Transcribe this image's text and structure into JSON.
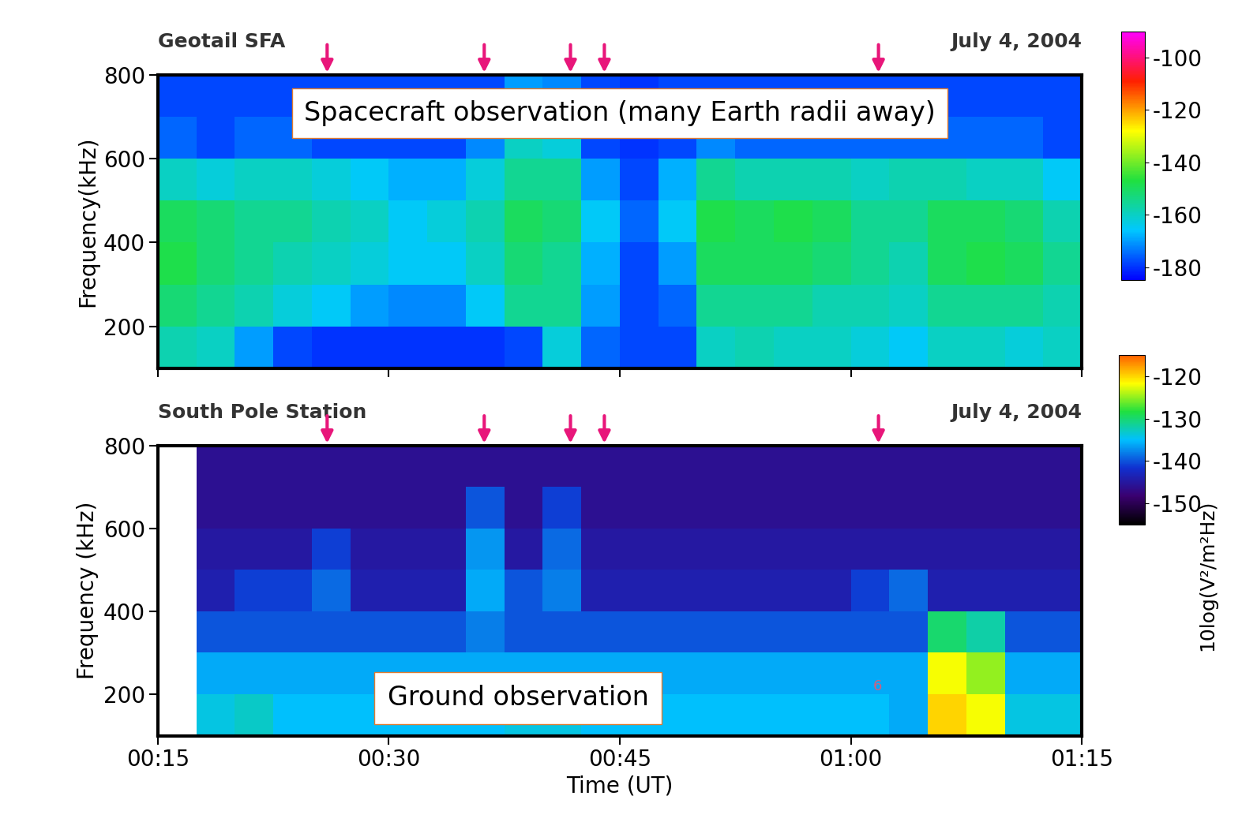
{
  "chart_data": [
    {
      "type": "heatmap",
      "title": "Geotail SFA",
      "subtitle": "July 4, 2004",
      "y_label": "Frequency(kHz)",
      "annotations": [
        "Spacecraft observation (many Earth radii away)"
      ],
      "tick_labels": "y",
      "xlim": [
        15,
        75
      ],
      "xticks": [
        {
          "value": 15,
          "label": "00:15"
        },
        {
          "value": 30,
          "label": "00:30"
        },
        {
          "value": 45,
          "label": "00:45"
        },
        {
          "value": 60,
          "label": "01:00"
        },
        {
          "value": 75,
          "label": "01:15"
        }
      ],
      "ylim": [
        100,
        800
      ],
      "yticks": [
        200,
        400,
        600,
        800
      ],
      "arrows": [
        26,
        36.2,
        41.8,
        44,
        61.8
      ],
      "x_edges": [
        15,
        17.5,
        20,
        22.5,
        25,
        27.5,
        30,
        32.5,
        35,
        37.5,
        40,
        42.5,
        45,
        47.5,
        50,
        52.5,
        55,
        57.5,
        60,
        62.5,
        65,
        67.5,
        70,
        72.5,
        75
      ],
      "y_edges": [
        100,
        200,
        300,
        400,
        500,
        600,
        700,
        800
      ],
      "cells": [
        [
          -158,
          -160,
          -170,
          -178,
          -180,
          -180,
          -180,
          -180,
          -180,
          -178,
          -162,
          -175,
          -178,
          -178,
          -160,
          -158,
          -160,
          -160,
          -162,
          -165,
          -160,
          -160,
          -162,
          -160
        ],
        [
          -152,
          -155,
          -158,
          -162,
          -165,
          -170,
          -172,
          -172,
          -165,
          -155,
          -155,
          -170,
          -178,
          -175,
          -155,
          -155,
          -155,
          -158,
          -158,
          -160,
          -155,
          -155,
          -155,
          -158
        ],
        [
          -148,
          -152,
          -155,
          -158,
          -160,
          -162,
          -165,
          -165,
          -160,
          -152,
          -155,
          -168,
          -178,
          -170,
          -150,
          -150,
          -150,
          -152,
          -155,
          -158,
          -150,
          -148,
          -150,
          -155
        ],
        [
          -150,
          -152,
          -155,
          -155,
          -158,
          -160,
          -165,
          -162,
          -158,
          -150,
          -152,
          -165,
          -175,
          -165,
          -148,
          -150,
          -148,
          -150,
          -155,
          -155,
          -150,
          -150,
          -152,
          -158
        ],
        [
          -160,
          -162,
          -160,
          -160,
          -162,
          -165,
          -168,
          -168,
          -162,
          -155,
          -155,
          -170,
          -178,
          -168,
          -155,
          -158,
          -158,
          -158,
          -160,
          -158,
          -158,
          -160,
          -160,
          -165
        ],
        [
          -175,
          -178,
          -175,
          -175,
          -178,
          -178,
          -178,
          -178,
          -172,
          -160,
          -162,
          -178,
          -180,
          -178,
          -172,
          -175,
          -175,
          -175,
          -175,
          -175,
          -175,
          -175,
          -175,
          -178
        ],
        [
          -178,
          -178,
          -178,
          -178,
          -178,
          -178,
          -178,
          -178,
          -178,
          -170,
          -172,
          -178,
          -180,
          -178,
          -178,
          -178,
          -178,
          -178,
          -178,
          -178,
          -178,
          -178,
          -178,
          -178
        ]
      ],
      "colorbar_range": [
        -185,
        -90
      ],
      "colorbar_ticks": [
        -100,
        -120,
        -140,
        -160,
        -180
      ]
    },
    {
      "type": "heatmap",
      "title": "South Pole Station",
      "subtitle": "July 4, 2004",
      "x_label": "Time (UT)",
      "y_label": "Frequency (kHz)",
      "annotations": [
        "Ground observation",
        "6"
      ],
      "colorbar_label": "10log(V²/m²Hz)",
      "xlim": [
        15,
        75
      ],
      "xticks": [
        {
          "value": 15,
          "label": "00:15"
        },
        {
          "value": 30,
          "label": "00:30"
        },
        {
          "value": 45,
          "label": "00:45"
        },
        {
          "value": 60,
          "label": "01:00"
        },
        {
          "value": 75,
          "label": "01:15"
        }
      ],
      "ylim": [
        100,
        800
      ],
      "yticks": [
        200,
        400,
        600,
        800
      ],
      "arrows": [
        26,
        36.2,
        41.8,
        44,
        61.8
      ],
      "x_edges": [
        15,
        17.5,
        20,
        22.5,
        25,
        27.5,
        30,
        32.5,
        35,
        37.5,
        40,
        42.5,
        45,
        47.5,
        50,
        52.5,
        55,
        57.5,
        60,
        62.5,
        65,
        67.5,
        70,
        72.5,
        75
      ],
      "y_edges": [
        100,
        200,
        300,
        400,
        500,
        600,
        700,
        800
      ],
      "cells": [
        [
          null,
          -134,
          -133,
          -135,
          -135,
          -135,
          -135,
          -135,
          -135,
          -134,
          -134,
          -135,
          -135,
          -135,
          -135,
          -135,
          -135,
          -135,
          -135,
          -136,
          -120,
          -122,
          -134,
          -134
        ],
        [
          null,
          -136,
          -136,
          -136,
          -136,
          -136,
          -136,
          -136,
          -136,
          -136,
          -136,
          -136,
          -136,
          -136,
          -136,
          -136,
          -136,
          -136,
          -136,
          -136,
          -122,
          -125,
          -136,
          -136
        ],
        [
          null,
          -140,
          -140,
          -140,
          -140,
          -140,
          -140,
          -140,
          -138,
          -140,
          -140,
          -140,
          -140,
          -140,
          -140,
          -140,
          -140,
          -140,
          -140,
          -140,
          -130,
          -132,
          -140,
          -140
        ],
        [
          null,
          -144,
          -141,
          -141,
          -139,
          -144,
          -144,
          -144,
          -136,
          -140,
          -138,
          -144,
          -144,
          -144,
          -144,
          -144,
          -144,
          -144,
          -141,
          -139,
          -144,
          -144,
          -144,
          -144
        ],
        [
          null,
          -145,
          -145,
          -145,
          -141,
          -145,
          -145,
          -145,
          -137,
          -145,
          -139,
          -145,
          -145,
          -145,
          -145,
          -145,
          -145,
          -145,
          -145,
          -145,
          -145,
          -145,
          -145,
          -145
        ],
        [
          null,
          -146,
          -146,
          -146,
          -146,
          -146,
          -146,
          -146,
          -140,
          -146,
          -141,
          -146,
          -146,
          -146,
          -146,
          -146,
          -146,
          -146,
          -146,
          -146,
          -146,
          -146,
          -146,
          -146
        ],
        [
          null,
          -146,
          -146,
          -146,
          -146,
          -146,
          -146,
          -146,
          -146,
          -146,
          -146,
          -146,
          -146,
          -146,
          -146,
          -146,
          -146,
          -146,
          -146,
          -146,
          -146,
          -146,
          -146,
          -146
        ]
      ],
      "colorbar_range": [
        -155,
        -115
      ],
      "colorbar_ticks": [
        -120,
        -130,
        -140,
        -150
      ]
    }
  ]
}
